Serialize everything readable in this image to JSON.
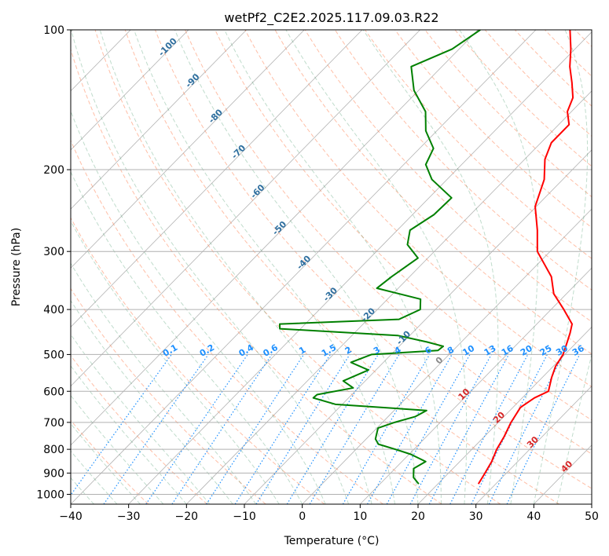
{
  "chart_data": {
    "type": "line",
    "subtype": "skew-t log-p diagram",
    "title": "wetPf2_C2E2.2025.117.09.03.R22",
    "xlabel": "Temperature (°C)",
    "ylabel": "Pressure (hPa)",
    "xlim": [
      -40,
      50
    ],
    "ylim": [
      1050,
      100
    ],
    "y_scale": "log",
    "grid": true,
    "x_ticks": [
      -40,
      -30,
      -20,
      -10,
      0,
      10,
      20,
      30,
      40,
      50
    ],
    "x_tick_labels": [
      "−40",
      "−30",
      "−20",
      "−10",
      "0",
      "10",
      "20",
      "30",
      "40",
      "50"
    ],
    "y_ticks": [
      100,
      200,
      300,
      400,
      500,
      600,
      700,
      800,
      900,
      1000
    ],
    "y_tick_labels": [
      "100",
      "200",
      "300",
      "400",
      "500",
      "600",
      "700",
      "800",
      "900",
      "1000"
    ],
    "series": [
      {
        "role": "temperature",
        "color": "#ff0000",
        "p": [
          950,
          900,
          850,
          800,
          750,
          700,
          650,
          620,
          600,
          560,
          530,
          500,
          470,
          450,
          430,
          400,
          370,
          340,
          300,
          270,
          240,
          210,
          190,
          175,
          160,
          150,
          140,
          130,
          120,
          110,
          100
        ],
        "t": [
          27,
          26.3,
          25.5,
          24.3,
          23.4,
          22.2,
          21.3,
          22.1,
          23.4,
          21.6,
          20.4,
          19.7,
          18.3,
          17.3,
          16.1,
          12.2,
          7.8,
          4.5,
          -2.2,
          -5.8,
          -10.2,
          -13.2,
          -16.5,
          -18.2,
          -18.2,
          -20.7,
          -22.1,
          -24.8,
          -27.9,
          -30.7,
          -34.1
        ]
      },
      {
        "role": "dewpoint",
        "color": "#008000",
        "p": [
          950,
          920,
          880,
          850,
          820,
          800,
          780,
          760,
          740,
          720,
          700,
          680,
          660,
          640,
          620,
          610,
          590,
          570,
          540,
          520,
          500,
          490,
          480,
          470,
          455,
          440,
          430,
          420,
          400,
          380,
          360,
          340,
          310,
          290,
          270,
          250,
          230,
          210,
          195,
          180,
          165,
          150,
          135,
          120,
          110,
          100
        ],
        "td": [
          16.7,
          14.7,
          13.2,
          14.1,
          10.3,
          6.8,
          3,
          1.6,
          0.9,
          0.2,
          2.1,
          4.7,
          5.6,
          -11.2,
          -16.1,
          -16,
          -10.9,
          -13.8,
          -11.3,
          -15.6,
          -13.4,
          -2.6,
          -2.4,
          -5.9,
          -12.1,
          -33.6,
          -34.4,
          -14.6,
          -12.6,
          -14.3,
          -23.7,
          -23.1,
          -21.7,
          -25.8,
          -27.8,
          -26.3,
          -26.1,
          -32.6,
          -36.2,
          -37.6,
          -41.9,
          -45.2,
          -50.8,
          -55.3,
          -51.2,
          -49.6
        ]
      }
    ],
    "dry_adiabat_labels": [
      "-100",
      "-90",
      "-80",
      "-70",
      "-60",
      "-50",
      "-40",
      "-30",
      "-20",
      "-10",
      "0",
      "10",
      "20",
      "30",
      "40"
    ],
    "dry_adiabat_values": [
      -100,
      -90,
      -80,
      -70,
      -60,
      -50,
      -40,
      -30,
      -20,
      -10,
      0,
      10,
      20,
      30,
      40
    ],
    "mixing_ratio_labels": [
      "0.1",
      "0.2",
      "0.4",
      "0.6",
      "1",
      "1.5",
      "2",
      "3",
      "4",
      "6",
      "8",
      "10",
      "13",
      "16",
      "20",
      "25",
      "30",
      "36"
    ],
    "mixing_ratio_values": [
      0.1,
      0.2,
      0.4,
      0.6,
      1,
      1.5,
      2,
      3,
      4,
      6,
      8,
      10,
      13,
      16,
      20,
      25,
      30,
      36
    ],
    "colors": {
      "temperature": "#ff0000",
      "dewpoint": "#008000",
      "dry_adiabat": "#ff7f50",
      "moist_adiabat": "#2e8b57",
      "mixing_ratio": "#1e90ff",
      "isotherm": "#808080",
      "grid": "#b0b0b0"
    }
  }
}
